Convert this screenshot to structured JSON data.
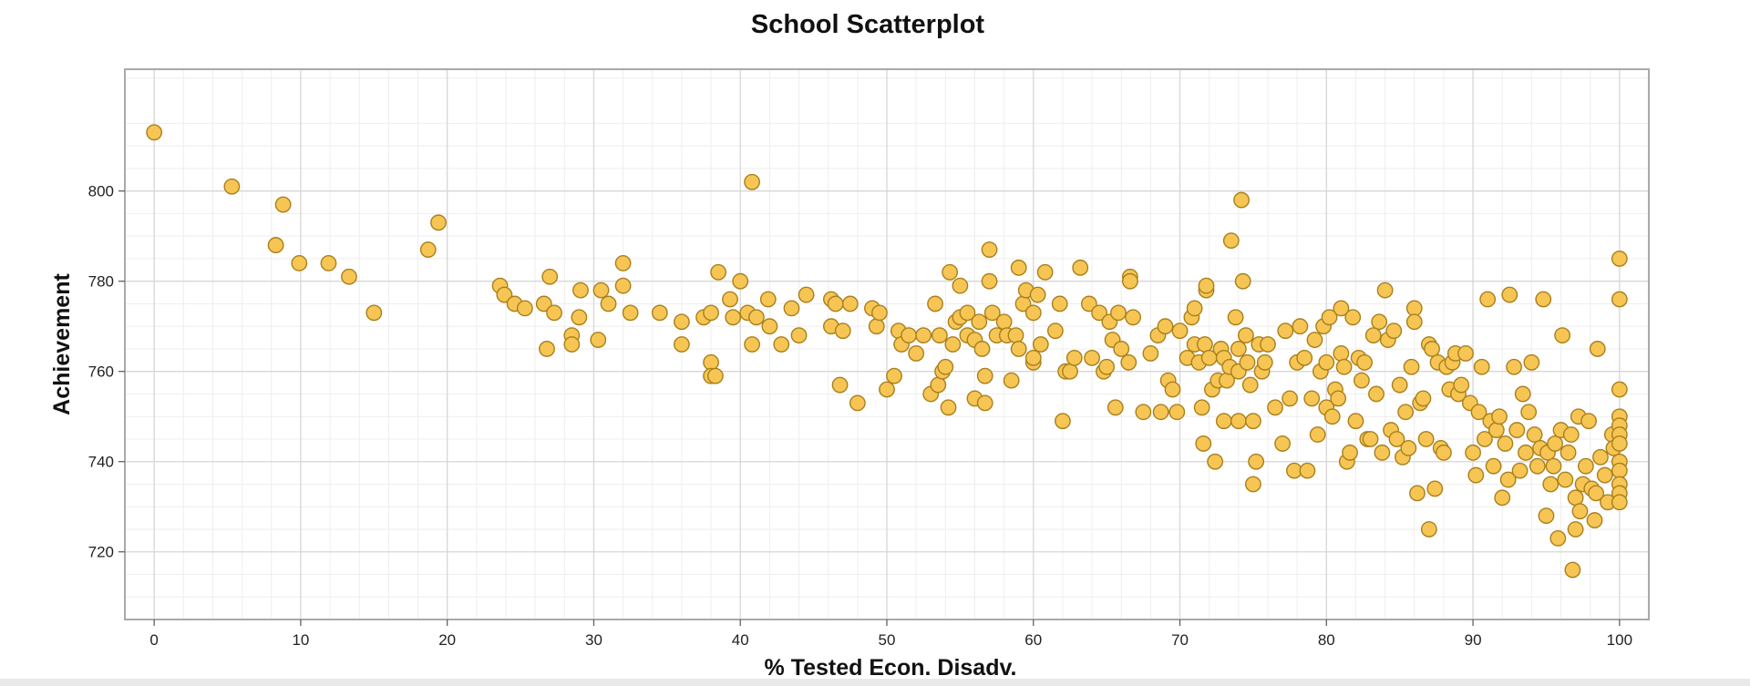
{
  "chart_data": {
    "type": "scatter",
    "title": "School Scatterplot",
    "xlabel": "% Tested Econ. Disadv.",
    "ylabel": "Achievement",
    "xlim": [
      -2,
      102
    ],
    "ylim": [
      705,
      827
    ],
    "xticks": [
      0,
      10,
      20,
      30,
      40,
      50,
      60,
      70,
      80,
      90,
      100
    ],
    "yticks": [
      720,
      740,
      760,
      780,
      800
    ],
    "grid": true,
    "colors": {
      "point_fill": "#f6c554",
      "point_stroke": "#a8801c"
    },
    "points": [
      [
        0,
        813
      ],
      [
        5.3,
        801
      ],
      [
        8.8,
        797
      ],
      [
        8.3,
        788
      ],
      [
        9.9,
        784
      ],
      [
        11.9,
        784
      ],
      [
        13.3,
        781
      ],
      [
        15.0,
        773
      ],
      [
        18.7,
        787
      ],
      [
        19.4,
        793
      ],
      [
        23.6,
        779
      ],
      [
        23.9,
        777
      ],
      [
        24.6,
        775
      ],
      [
        25.3,
        774
      ],
      [
        26.6,
        775
      ],
      [
        26.8,
        765
      ],
      [
        27.0,
        781
      ],
      [
        27.3,
        773
      ],
      [
        28.5,
        768
      ],
      [
        28.5,
        766
      ],
      [
        29.0,
        772
      ],
      [
        29.1,
        778
      ],
      [
        30.3,
        767
      ],
      [
        30.5,
        778
      ],
      [
        31.0,
        775
      ],
      [
        32.0,
        784
      ],
      [
        32.0,
        779
      ],
      [
        32.5,
        773
      ],
      [
        34.5,
        773
      ],
      [
        36.0,
        766
      ],
      [
        36.0,
        771
      ],
      [
        37.5,
        772
      ],
      [
        38.0,
        762
      ],
      [
        38.0,
        773
      ],
      [
        38.0,
        759
      ],
      [
        38.3,
        759
      ],
      [
        38.5,
        782
      ],
      [
        39.3,
        776
      ],
      [
        39.5,
        772
      ],
      [
        40.0,
        780
      ],
      [
        40.5,
        773
      ],
      [
        40.8,
        766
      ],
      [
        40.8,
        802
      ],
      [
        41.1,
        772
      ],
      [
        41.9,
        776
      ],
      [
        42.0,
        770
      ],
      [
        42.8,
        766
      ],
      [
        43.5,
        774
      ],
      [
        44.0,
        768
      ],
      [
        44.5,
        777
      ],
      [
        46.2,
        776
      ],
      [
        46.2,
        770
      ],
      [
        46.5,
        775
      ],
      [
        46.8,
        757
      ],
      [
        47.0,
        769
      ],
      [
        47.5,
        775
      ],
      [
        48.0,
        753
      ],
      [
        49.0,
        774
      ],
      [
        49.3,
        770
      ],
      [
        49.5,
        773
      ],
      [
        50.0,
        756
      ],
      [
        50.5,
        759
      ],
      [
        50.8,
        769
      ],
      [
        51.0,
        766
      ],
      [
        51.5,
        768
      ],
      [
        52.0,
        764
      ],
      [
        52.5,
        768
      ],
      [
        53.0,
        755
      ],
      [
        53.3,
        775
      ],
      [
        53.5,
        757
      ],
      [
        53.6,
        768
      ],
      [
        53.8,
        760
      ],
      [
        54.0,
        761
      ],
      [
        54.2,
        752
      ],
      [
        54.3,
        782
      ],
      [
        54.5,
        766
      ],
      [
        54.7,
        771
      ],
      [
        55.0,
        779
      ],
      [
        55.0,
        772
      ],
      [
        55.5,
        773
      ],
      [
        55.5,
        768
      ],
      [
        56.0,
        754
      ],
      [
        56.0,
        767
      ],
      [
        56.3,
        771
      ],
      [
        56.5,
        765
      ],
      [
        56.7,
        753
      ],
      [
        56.7,
        759
      ],
      [
        57.0,
        787
      ],
      [
        57.0,
        780
      ],
      [
        57.2,
        773
      ],
      [
        57.5,
        768
      ],
      [
        58.0,
        771
      ],
      [
        58.2,
        768
      ],
      [
        58.5,
        758
      ],
      [
        58.8,
        768
      ],
      [
        59.0,
        765
      ],
      [
        59.0,
        783
      ],
      [
        59.3,
        775
      ],
      [
        59.5,
        778
      ],
      [
        60.0,
        773
      ],
      [
        60.0,
        762
      ],
      [
        60.0,
        763
      ],
      [
        60.3,
        777
      ],
      [
        60.5,
        766
      ],
      [
        60.8,
        782
      ],
      [
        61.5,
        769
      ],
      [
        61.8,
        775
      ],
      [
        62.0,
        749
      ],
      [
        62.2,
        760
      ],
      [
        62.5,
        760
      ],
      [
        62.8,
        763
      ],
      [
        63.2,
        783
      ],
      [
        63.8,
        775
      ],
      [
        64.0,
        763
      ],
      [
        64.5,
        773
      ],
      [
        64.8,
        760
      ],
      [
        65.0,
        761
      ],
      [
        65.2,
        771
      ],
      [
        65.4,
        767
      ],
      [
        65.6,
        752
      ],
      [
        65.8,
        773
      ],
      [
        66.0,
        765
      ],
      [
        66.5,
        762
      ],
      [
        66.6,
        781
      ],
      [
        66.6,
        780
      ],
      [
        66.8,
        772
      ],
      [
        67.5,
        751
      ],
      [
        68.0,
        764
      ],
      [
        68.5,
        768
      ],
      [
        68.7,
        751
      ],
      [
        69.0,
        770
      ],
      [
        69.2,
        758
      ],
      [
        69.5,
        756
      ],
      [
        69.8,
        751
      ],
      [
        70.0,
        769
      ],
      [
        70.5,
        763
      ],
      [
        70.8,
        772
      ],
      [
        71.0,
        766
      ],
      [
        71.0,
        774
      ],
      [
        71.3,
        762
      ],
      [
        71.5,
        752
      ],
      [
        71.6,
        744
      ],
      [
        71.7,
        766
      ],
      [
        71.8,
        778
      ],
      [
        71.8,
        779
      ],
      [
        72.0,
        763
      ],
      [
        72.2,
        756
      ],
      [
        72.4,
        740
      ],
      [
        72.6,
        758
      ],
      [
        72.8,
        765
      ],
      [
        73.0,
        749
      ],
      [
        73.0,
        763
      ],
      [
        73.2,
        758
      ],
      [
        73.4,
        761
      ],
      [
        73.5,
        789
      ],
      [
        73.8,
        772
      ],
      [
        74.0,
        760
      ],
      [
        74.0,
        765
      ],
      [
        74.0,
        749
      ],
      [
        74.2,
        798
      ],
      [
        74.3,
        780
      ],
      [
        74.5,
        768
      ],
      [
        74.6,
        762
      ],
      [
        74.8,
        757
      ],
      [
        75.0,
        749
      ],
      [
        75.0,
        735
      ],
      [
        75.2,
        740
      ],
      [
        75.4,
        766
      ],
      [
        75.6,
        760
      ],
      [
        75.8,
        762
      ],
      [
        76.0,
        766
      ],
      [
        76.5,
        752
      ],
      [
        77.0,
        744
      ],
      [
        77.2,
        769
      ],
      [
        77.5,
        754
      ],
      [
        77.8,
        738
      ],
      [
        78.0,
        762
      ],
      [
        78.2,
        770
      ],
      [
        78.5,
        763
      ],
      [
        78.7,
        738
      ],
      [
        79.0,
        754
      ],
      [
        79.2,
        767
      ],
      [
        79.4,
        746
      ],
      [
        79.6,
        760
      ],
      [
        79.8,
        770
      ],
      [
        80.0,
        752
      ],
      [
        80.0,
        762
      ],
      [
        80.2,
        772
      ],
      [
        80.4,
        750
      ],
      [
        80.6,
        756
      ],
      [
        80.8,
        754
      ],
      [
        81.0,
        774
      ],
      [
        81.0,
        764
      ],
      [
        81.2,
        761
      ],
      [
        81.4,
        740
      ],
      [
        81.6,
        742
      ],
      [
        81.8,
        772
      ],
      [
        82.0,
        749
      ],
      [
        82.2,
        763
      ],
      [
        82.4,
        758
      ],
      [
        82.6,
        762
      ],
      [
        82.8,
        745
      ],
      [
        83.0,
        745
      ],
      [
        83.2,
        768
      ],
      [
        83.4,
        755
      ],
      [
        83.6,
        771
      ],
      [
        83.8,
        742
      ],
      [
        84.0,
        778
      ],
      [
        84.2,
        767
      ],
      [
        84.4,
        747
      ],
      [
        84.6,
        769
      ],
      [
        84.8,
        745
      ],
      [
        85.0,
        757
      ],
      [
        85.2,
        741
      ],
      [
        85.4,
        751
      ],
      [
        85.6,
        743
      ],
      [
        85.8,
        761
      ],
      [
        86.0,
        774
      ],
      [
        86.0,
        771
      ],
      [
        86.2,
        733
      ],
      [
        86.4,
        753
      ],
      [
        86.6,
        754
      ],
      [
        86.8,
        745
      ],
      [
        87.0,
        725
      ],
      [
        87.0,
        766
      ],
      [
        87.2,
        765
      ],
      [
        87.4,
        734
      ],
      [
        87.6,
        762
      ],
      [
        87.8,
        743
      ],
      [
        88.0,
        742
      ],
      [
        88.2,
        761
      ],
      [
        88.4,
        756
      ],
      [
        88.6,
        762
      ],
      [
        88.8,
        764
      ],
      [
        89.0,
        755
      ],
      [
        89.2,
        757
      ],
      [
        89.5,
        764
      ],
      [
        89.8,
        753
      ],
      [
        90.0,
        742
      ],
      [
        90.2,
        737
      ],
      [
        90.4,
        751
      ],
      [
        90.6,
        761
      ],
      [
        90.8,
        745
      ],
      [
        91.0,
        776
      ],
      [
        91.2,
        749
      ],
      [
        91.4,
        739
      ],
      [
        91.6,
        747
      ],
      [
        91.8,
        750
      ],
      [
        92.0,
        732
      ],
      [
        92.2,
        744
      ],
      [
        92.4,
        736
      ],
      [
        92.5,
        777
      ],
      [
        92.8,
        761
      ],
      [
        93.0,
        747
      ],
      [
        93.2,
        738
      ],
      [
        93.4,
        755
      ],
      [
        93.6,
        742
      ],
      [
        93.8,
        751
      ],
      [
        94.0,
        762
      ],
      [
        94.2,
        746
      ],
      [
        94.4,
        739
      ],
      [
        94.6,
        743
      ],
      [
        94.8,
        776
      ],
      [
        95.0,
        728
      ],
      [
        95.1,
        742
      ],
      [
        95.3,
        735
      ],
      [
        95.5,
        739
      ],
      [
        95.6,
        744
      ],
      [
        95.8,
        723
      ],
      [
        96.0,
        747
      ],
      [
        96.1,
        768
      ],
      [
        96.3,
        736
      ],
      [
        96.5,
        742
      ],
      [
        96.7,
        746
      ],
      [
        96.8,
        716
      ],
      [
        97.0,
        732
      ],
      [
        97.0,
        725
      ],
      [
        97.2,
        750
      ],
      [
        97.3,
        729
      ],
      [
        97.5,
        735
      ],
      [
        97.7,
        739
      ],
      [
        97.9,
        749
      ],
      [
        98.1,
        734
      ],
      [
        98.3,
        727
      ],
      [
        98.4,
        733
      ],
      [
        98.5,
        765
      ],
      [
        98.7,
        741
      ],
      [
        99.0,
        737
      ],
      [
        99.2,
        731
      ],
      [
        99.5,
        746
      ],
      [
        99.6,
        743
      ],
      [
        100,
        785
      ],
      [
        100,
        776
      ],
      [
        100,
        756
      ],
      [
        100,
        750
      ],
      [
        100,
        748
      ],
      [
        100,
        746
      ],
      [
        100,
        744
      ],
      [
        100,
        740
      ],
      [
        100,
        738
      ],
      [
        100,
        735
      ],
      [
        100,
        733
      ],
      [
        100,
        731
      ]
    ]
  }
}
